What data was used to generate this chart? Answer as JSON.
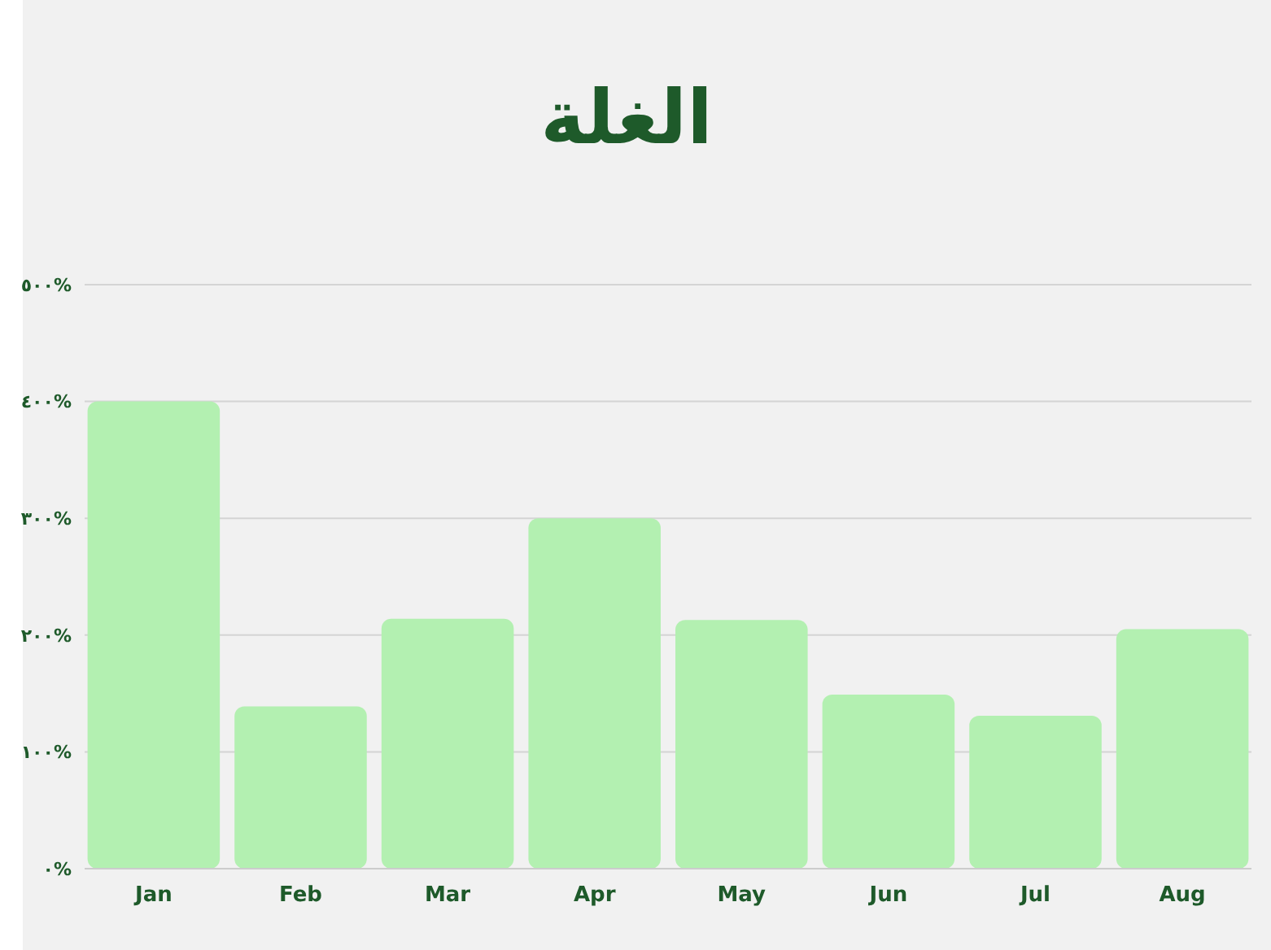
{
  "chart_data": {
    "type": "bar",
    "title": "الغلة",
    "categories": [
      "Jan",
      "Feb",
      "Mar",
      "Apr",
      "May",
      "Jun",
      "Jul",
      "Aug"
    ],
    "values": [
      400,
      139,
      214,
      300,
      213,
      149,
      131,
      205
    ],
    "color": "#b3f0b1",
    "ylim": [
      0,
      500
    ],
    "yticks": [
      {
        "value": 0,
        "label": "٠%"
      },
      {
        "value": 100,
        "label": "١٠٠%"
      },
      {
        "value": 200,
        "label": "٢٠٠%"
      },
      {
        "value": 300,
        "label": "٣٠٠%"
      },
      {
        "value": 400,
        "label": "٤٠٠%"
      },
      {
        "value": 500,
        "label": "٥٠٠%"
      }
    ],
    "grid": "y"
  }
}
